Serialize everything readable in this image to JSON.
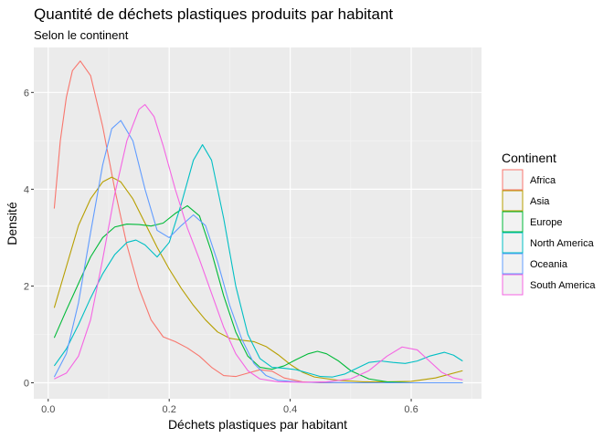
{
  "chart_data": {
    "type": "line",
    "title": "Quantité de déchets plastiques produits par habitant",
    "subtitle": "Selon le continent",
    "xlabel": "Déchets plastiques par habitant",
    "ylabel": "Densité",
    "xlim": [
      -0.0238,
      0.7162
    ],
    "ylim": [
      -0.33,
      6.93
    ],
    "x_ticks": [
      0.0,
      0.2,
      0.4,
      0.6
    ],
    "x_tick_labels": [
      "0.0",
      "0.2",
      "0.4",
      "0.6"
    ],
    "y_ticks": [
      0,
      2,
      4,
      6
    ],
    "y_tick_labels": [
      "0",
      "2",
      "4",
      "6"
    ],
    "grid": true,
    "background": "#ebebeb",
    "legend": {
      "title": "Continent",
      "position": "right"
    },
    "series": [
      {
        "name": "Africa",
        "color": "#F8766D",
        "points": [
          [
            0.01,
            3.6
          ],
          [
            0.02,
            5.0
          ],
          [
            0.03,
            5.9
          ],
          [
            0.04,
            6.45
          ],
          [
            0.053,
            6.65
          ],
          [
            0.07,
            6.35
          ],
          [
            0.09,
            5.3
          ],
          [
            0.11,
            4.0
          ],
          [
            0.13,
            2.85
          ],
          [
            0.15,
            1.95
          ],
          [
            0.17,
            1.3
          ],
          [
            0.19,
            0.95
          ],
          [
            0.21,
            0.85
          ],
          [
            0.23,
            0.72
          ],
          [
            0.25,
            0.55
          ],
          [
            0.27,
            0.32
          ],
          [
            0.29,
            0.15
          ],
          [
            0.31,
            0.13
          ],
          [
            0.33,
            0.2
          ],
          [
            0.35,
            0.27
          ],
          [
            0.37,
            0.24
          ],
          [
            0.39,
            0.1
          ],
          [
            0.42,
            0.02
          ],
          [
            0.45,
            0.0
          ],
          [
            0.5,
            0.0
          ],
          [
            0.55,
            0.0
          ],
          [
            0.6,
            0.0
          ],
          [
            0.65,
            0.0
          ],
          [
            0.685,
            0.0
          ]
        ]
      },
      {
        "name": "Asia",
        "color": "#B79F00",
        "points": [
          [
            0.01,
            1.55
          ],
          [
            0.03,
            2.4
          ],
          [
            0.05,
            3.25
          ],
          [
            0.07,
            3.8
          ],
          [
            0.09,
            4.15
          ],
          [
            0.105,
            4.25
          ],
          [
            0.12,
            4.15
          ],
          [
            0.14,
            3.8
          ],
          [
            0.16,
            3.3
          ],
          [
            0.18,
            2.8
          ],
          [
            0.2,
            2.35
          ],
          [
            0.22,
            1.95
          ],
          [
            0.24,
            1.6
          ],
          [
            0.26,
            1.3
          ],
          [
            0.28,
            1.05
          ],
          [
            0.3,
            0.92
          ],
          [
            0.32,
            0.88
          ],
          [
            0.34,
            0.85
          ],
          [
            0.36,
            0.75
          ],
          [
            0.38,
            0.58
          ],
          [
            0.4,
            0.38
          ],
          [
            0.42,
            0.22
          ],
          [
            0.44,
            0.12
          ],
          [
            0.48,
            0.05
          ],
          [
            0.52,
            0.02
          ],
          [
            0.56,
            0.02
          ],
          [
            0.6,
            0.03
          ],
          [
            0.64,
            0.1
          ],
          [
            0.685,
            0.25
          ]
        ]
      },
      {
        "name": "Europe",
        "color": "#00BA38",
        "points": [
          [
            0.01,
            0.93
          ],
          [
            0.03,
            1.5
          ],
          [
            0.05,
            2.05
          ],
          [
            0.07,
            2.6
          ],
          [
            0.09,
            3.0
          ],
          [
            0.11,
            3.22
          ],
          [
            0.13,
            3.28
          ],
          [
            0.15,
            3.27
          ],
          [
            0.17,
            3.24
          ],
          [
            0.19,
            3.3
          ],
          [
            0.21,
            3.5
          ],
          [
            0.23,
            3.66
          ],
          [
            0.25,
            3.45
          ],
          [
            0.27,
            2.7
          ],
          [
            0.29,
            1.8
          ],
          [
            0.31,
            1.05
          ],
          [
            0.33,
            0.55
          ],
          [
            0.35,
            0.32
          ],
          [
            0.37,
            0.28
          ],
          [
            0.39,
            0.35
          ],
          [
            0.41,
            0.48
          ],
          [
            0.43,
            0.6
          ],
          [
            0.445,
            0.65
          ],
          [
            0.46,
            0.6
          ],
          [
            0.48,
            0.45
          ],
          [
            0.5,
            0.25
          ],
          [
            0.53,
            0.08
          ],
          [
            0.56,
            0.02
          ],
          [
            0.6,
            0.0
          ],
          [
            0.65,
            0.0
          ],
          [
            0.685,
            0.0
          ]
        ]
      },
      {
        "name": "North America",
        "color": "#00BFC4",
        "points": [
          [
            0.01,
            0.35
          ],
          [
            0.03,
            0.7
          ],
          [
            0.05,
            1.2
          ],
          [
            0.07,
            1.75
          ],
          [
            0.09,
            2.25
          ],
          [
            0.11,
            2.65
          ],
          [
            0.13,
            2.9
          ],
          [
            0.145,
            2.95
          ],
          [
            0.16,
            2.85
          ],
          [
            0.18,
            2.6
          ],
          [
            0.2,
            2.9
          ],
          [
            0.22,
            3.7
          ],
          [
            0.24,
            4.6
          ],
          [
            0.255,
            4.92
          ],
          [
            0.27,
            4.6
          ],
          [
            0.29,
            3.4
          ],
          [
            0.31,
            2.0
          ],
          [
            0.33,
            1.0
          ],
          [
            0.35,
            0.5
          ],
          [
            0.37,
            0.32
          ],
          [
            0.39,
            0.3
          ],
          [
            0.41,
            0.27
          ],
          [
            0.43,
            0.2
          ],
          [
            0.45,
            0.13
          ],
          [
            0.47,
            0.12
          ],
          [
            0.49,
            0.18
          ],
          [
            0.51,
            0.3
          ],
          [
            0.53,
            0.42
          ],
          [
            0.55,
            0.45
          ],
          [
            0.57,
            0.42
          ],
          [
            0.59,
            0.4
          ],
          [
            0.61,
            0.45
          ],
          [
            0.63,
            0.55
          ],
          [
            0.655,
            0.63
          ],
          [
            0.67,
            0.57
          ],
          [
            0.685,
            0.45
          ]
        ]
      },
      {
        "name": "Oceania",
        "color": "#619CFF",
        "points": [
          [
            0.01,
            0.12
          ],
          [
            0.03,
            0.6
          ],
          [
            0.05,
            1.65
          ],
          [
            0.07,
            3.1
          ],
          [
            0.09,
            4.5
          ],
          [
            0.105,
            5.25
          ],
          [
            0.12,
            5.42
          ],
          [
            0.14,
            5.0
          ],
          [
            0.16,
            4.0
          ],
          [
            0.18,
            3.15
          ],
          [
            0.2,
            3.0
          ],
          [
            0.22,
            3.25
          ],
          [
            0.24,
            3.47
          ],
          [
            0.26,
            3.25
          ],
          [
            0.28,
            2.5
          ],
          [
            0.3,
            1.6
          ],
          [
            0.32,
            0.9
          ],
          [
            0.34,
            0.4
          ],
          [
            0.36,
            0.15
          ],
          [
            0.38,
            0.05
          ],
          [
            0.42,
            0.01
          ],
          [
            0.5,
            0.0
          ],
          [
            0.6,
            0.0
          ],
          [
            0.685,
            0.0
          ]
        ]
      },
      {
        "name": "South America",
        "color": "#F564E3",
        "points": [
          [
            0.01,
            0.08
          ],
          [
            0.03,
            0.2
          ],
          [
            0.05,
            0.55
          ],
          [
            0.07,
            1.3
          ],
          [
            0.09,
            2.55
          ],
          [
            0.11,
            3.9
          ],
          [
            0.13,
            5.0
          ],
          [
            0.15,
            5.65
          ],
          [
            0.16,
            5.75
          ],
          [
            0.175,
            5.5
          ],
          [
            0.19,
            4.9
          ],
          [
            0.21,
            4.0
          ],
          [
            0.23,
            3.2
          ],
          [
            0.25,
            2.55
          ],
          [
            0.27,
            1.85
          ],
          [
            0.29,
            1.15
          ],
          [
            0.31,
            0.6
          ],
          [
            0.33,
            0.25
          ],
          [
            0.35,
            0.08
          ],
          [
            0.38,
            0.02
          ],
          [
            0.42,
            0.01
          ],
          [
            0.46,
            0.02
          ],
          [
            0.5,
            0.08
          ],
          [
            0.53,
            0.25
          ],
          [
            0.56,
            0.55
          ],
          [
            0.585,
            0.74
          ],
          [
            0.61,
            0.68
          ],
          [
            0.63,
            0.45
          ],
          [
            0.65,
            0.22
          ],
          [
            0.67,
            0.1
          ],
          [
            0.685,
            0.06
          ]
        ]
      }
    ]
  }
}
